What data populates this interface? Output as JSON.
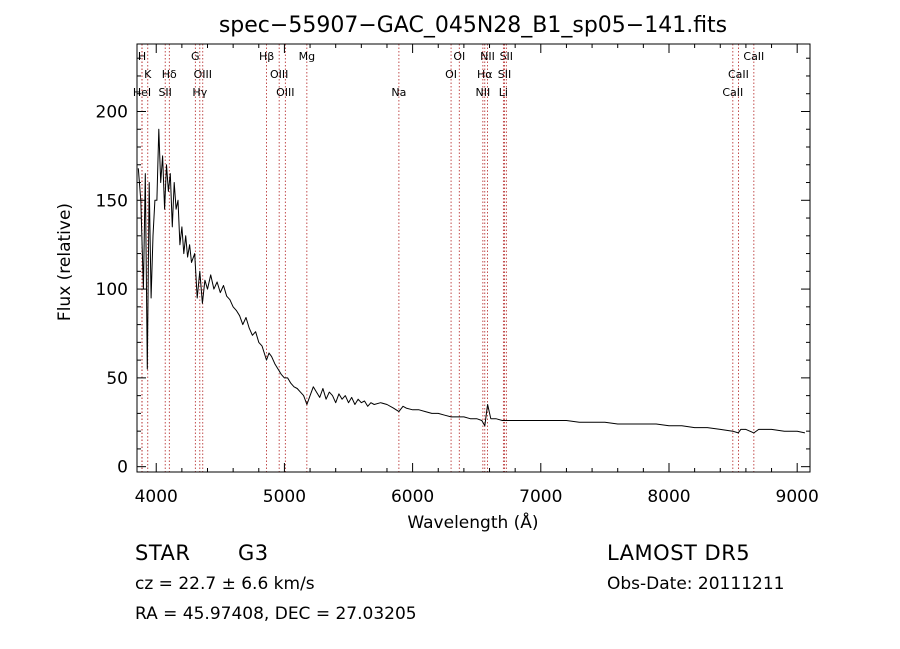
{
  "chart_data": {
    "type": "line",
    "title": "spec−55907−GAC_045N28_B1_sp05−141.fits",
    "xlabel": "Wavelength (Å)",
    "ylabel": "Flux (relative)",
    "xlim": [
      3850,
      9100
    ],
    "ylim": [
      -3,
      238
    ],
    "x_ticks": [
      4000,
      5000,
      6000,
      7000,
      8000,
      9000
    ],
    "y_ticks": [
      0,
      50,
      100,
      150,
      200
    ],
    "grid": false,
    "series": [
      {
        "color": "#000000",
        "points": [
          [
            3860,
            168
          ],
          [
            3880,
            150
          ],
          [
            3900,
            100
          ],
          [
            3915,
            165
          ],
          [
            3930,
            55
          ],
          [
            3945,
            160
          ],
          [
            3960,
            95
          ],
          [
            3975,
            130
          ],
          [
            3990,
            150
          ],
          [
            4005,
            150
          ],
          [
            4020,
            190
          ],
          [
            4035,
            160
          ],
          [
            4050,
            175
          ],
          [
            4065,
            145
          ],
          [
            4080,
            170
          ],
          [
            4095,
            155
          ],
          [
            4110,
            165
          ],
          [
            4125,
            135
          ],
          [
            4140,
            160
          ],
          [
            4155,
            145
          ],
          [
            4170,
            150
          ],
          [
            4185,
            125
          ],
          [
            4200,
            135
          ],
          [
            4215,
            120
          ],
          [
            4230,
            130
          ],
          [
            4245,
            118
          ],
          [
            4260,
            125
          ],
          [
            4275,
            115
          ],
          [
            4300,
            120
          ],
          [
            4320,
            95
          ],
          [
            4340,
            110
          ],
          [
            4360,
            92
          ],
          [
            4380,
            105
          ],
          [
            4400,
            100
          ],
          [
            4425,
            108
          ],
          [
            4450,
            100
          ],
          [
            4475,
            104
          ],
          [
            4500,
            98
          ],
          [
            4525,
            102
          ],
          [
            4550,
            96
          ],
          [
            4575,
            94
          ],
          [
            4600,
            90
          ],
          [
            4625,
            88
          ],
          [
            4650,
            85
          ],
          [
            4675,
            80
          ],
          [
            4700,
            84
          ],
          [
            4725,
            78
          ],
          [
            4750,
            74
          ],
          [
            4775,
            76
          ],
          [
            4800,
            70
          ],
          [
            4825,
            68
          ],
          [
            4860,
            60
          ],
          [
            4880,
            64
          ],
          [
            4900,
            62
          ],
          [
            4925,
            58
          ],
          [
            4950,
            55
          ],
          [
            4975,
            52
          ],
          [
            5000,
            50
          ],
          [
            5025,
            50
          ],
          [
            5050,
            47
          ],
          [
            5075,
            45
          ],
          [
            5100,
            44
          ],
          [
            5125,
            42
          ],
          [
            5150,
            40
          ],
          [
            5175,
            35
          ],
          [
            5200,
            40
          ],
          [
            5225,
            45
          ],
          [
            5250,
            42
          ],
          [
            5275,
            39
          ],
          [
            5300,
            44
          ],
          [
            5325,
            38
          ],
          [
            5350,
            42
          ],
          [
            5375,
            40
          ],
          [
            5400,
            36
          ],
          [
            5425,
            41
          ],
          [
            5450,
            38
          ],
          [
            5475,
            40
          ],
          [
            5500,
            36
          ],
          [
            5525,
            39
          ],
          [
            5550,
            35
          ],
          [
            5575,
            38
          ],
          [
            5600,
            36
          ],
          [
            5625,
            37
          ],
          [
            5650,
            34
          ],
          [
            5675,
            36
          ],
          [
            5700,
            35
          ],
          [
            5750,
            36
          ],
          [
            5800,
            35
          ],
          [
            5850,
            33
          ],
          [
            5893,
            31
          ],
          [
            5925,
            34
          ],
          [
            5950,
            33
          ],
          [
            6000,
            32
          ],
          [
            6050,
            32
          ],
          [
            6100,
            31
          ],
          [
            6150,
            30
          ],
          [
            6200,
            30
          ],
          [
            6250,
            29
          ],
          [
            6300,
            28
          ],
          [
            6350,
            28
          ],
          [
            6400,
            28
          ],
          [
            6450,
            27
          ],
          [
            6500,
            27
          ],
          [
            6540,
            26
          ],
          [
            6563,
            23
          ],
          [
            6585,
            35
          ],
          [
            6610,
            27
          ],
          [
            6650,
            27
          ],
          [
            6700,
            26
          ],
          [
            6750,
            26
          ],
          [
            6800,
            26
          ],
          [
            6850,
            26
          ],
          [
            6900,
            26
          ],
          [
            6950,
            26
          ],
          [
            7000,
            26
          ],
          [
            7100,
            26
          ],
          [
            7200,
            26
          ],
          [
            7300,
            25
          ],
          [
            7400,
            25
          ],
          [
            7500,
            25
          ],
          [
            7600,
            24
          ],
          [
            7700,
            24
          ],
          [
            7800,
            24
          ],
          [
            7900,
            24
          ],
          [
            8000,
            23
          ],
          [
            8100,
            23
          ],
          [
            8200,
            22
          ],
          [
            8300,
            22
          ],
          [
            8400,
            21
          ],
          [
            8498,
            20
          ],
          [
            8540,
            19
          ],
          [
            8560,
            21
          ],
          [
            8600,
            21
          ],
          [
            8662,
            19
          ],
          [
            8700,
            21
          ],
          [
            8800,
            21
          ],
          [
            8900,
            20
          ],
          [
            9000,
            20
          ],
          [
            9060,
            19
          ]
        ]
      }
    ],
    "line_markers": [
      {
        "label": "H",
        "x": 3889,
        "row": 0
      },
      {
        "label": "K",
        "x": 3934,
        "row": 1
      },
      {
        "label": "HeI",
        "x": 3889,
        "row": 2
      },
      {
        "label": "Hδ",
        "x": 4102,
        "row": 1
      },
      {
        "label": "SII",
        "x": 4070,
        "row": 2
      },
      {
        "label": "G",
        "x": 4305,
        "row": 0
      },
      {
        "label": "OIII",
        "x": 4363,
        "row": 1
      },
      {
        "label": "Hγ",
        "x": 4340,
        "row": 2
      },
      {
        "label": "Hβ",
        "x": 4861,
        "row": 0
      },
      {
        "label": "OIII",
        "x": 4959,
        "row": 1
      },
      {
        "label": "OIII",
        "x": 5007,
        "row": 2
      },
      {
        "label": "Mg",
        "x": 5175,
        "row": 0
      },
      {
        "label": "Na",
        "x": 5893,
        "row": 2
      },
      {
        "label": "OI",
        "x": 6364,
        "row": 0
      },
      {
        "label": "OI",
        "x": 6300,
        "row": 1
      },
      {
        "label": "NII",
        "x": 6584,
        "row": 0
      },
      {
        "label": "Hα",
        "x": 6563,
        "row": 1
      },
      {
        "label": "NII",
        "x": 6548,
        "row": 2
      },
      {
        "label": "SII",
        "x": 6731,
        "row": 0
      },
      {
        "label": "SII",
        "x": 6717,
        "row": 1
      },
      {
        "label": "Li",
        "x": 6708,
        "row": 2
      },
      {
        "label": "CaII",
        "x": 8662,
        "row": 0
      },
      {
        "label": "CaII",
        "x": 8542,
        "row": 1
      },
      {
        "label": "CaII",
        "x": 8498,
        "row": 2
      }
    ],
    "marker_color": "#b22222"
  },
  "info": {
    "class_label": "STAR",
    "subclass_label": "G3",
    "redshift_text": "cz = 22.7 ± 6.6 km/s",
    "coords_text": "RA =  45.97408, DEC =  27.03205",
    "survey_text": "LAMOST  DR5",
    "obs_date_text": "Obs-Date: 20111211"
  }
}
